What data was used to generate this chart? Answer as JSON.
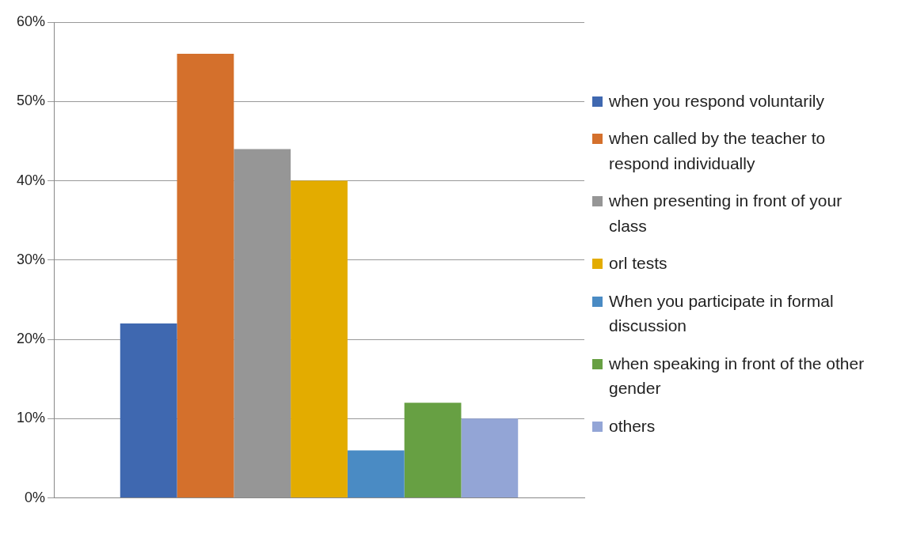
{
  "chart_data": {
    "type": "bar",
    "categories": [
      null
    ],
    "series": [
      {
        "name": "when you respond voluntarily",
        "color": "#3f68b0",
        "values": [
          22
        ]
      },
      {
        "name": "when called by the teacher to respond individually",
        "color": "#d4702c",
        "values": [
          56
        ]
      },
      {
        "name": "when presenting in front of your class",
        "color": "#969696",
        "values": [
          44
        ]
      },
      {
        "name": "orl tests",
        "color": "#e3ac00",
        "values": [
          40
        ]
      },
      {
        "name": "When you participate in formal discussion",
        "color": "#4a8bc4",
        "values": [
          6
        ]
      },
      {
        "name": "when speaking in front of the other gender",
        "color": "#67a043",
        "values": [
          12
        ]
      },
      {
        "name": "others",
        "color": "#93a5d6",
        "values": [
          10
        ]
      }
    ],
    "ylim": [
      0,
      60
    ],
    "yticks": [
      {
        "value": 0,
        "label": "0%"
      },
      {
        "value": 10,
        "label": "10%"
      },
      {
        "value": 20,
        "label": "20%"
      },
      {
        "value": 30,
        "label": "30%"
      },
      {
        "value": 40,
        "label": "40%"
      },
      {
        "value": 50,
        "label": "50%"
      },
      {
        "value": 60,
        "label": "60%"
      }
    ],
    "grid": "y",
    "legend": "right"
  }
}
